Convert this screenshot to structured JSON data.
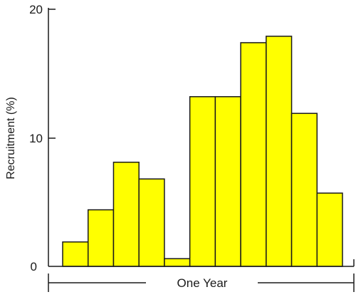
{
  "chart_data": {
    "type": "bar",
    "title": "",
    "xlabel": "One Year",
    "ylabel": "Recruitment (%)",
    "ylim": [
      0,
      20
    ],
    "yticks": [
      "0",
      "10",
      "20"
    ],
    "categories": [
      "",
      "",
      "",
      "",
      "",
      "",
      "",
      "",
      "",
      "",
      ""
    ],
    "values": [
      1.9,
      4.4,
      8.1,
      6.8,
      0.6,
      13.2,
      13.2,
      17.4,
      17.9,
      11.9,
      5.7
    ],
    "bar_color": "#ffff00",
    "bar_edge_color": "#1a1a1a",
    "grid": false,
    "legend": "none"
  }
}
